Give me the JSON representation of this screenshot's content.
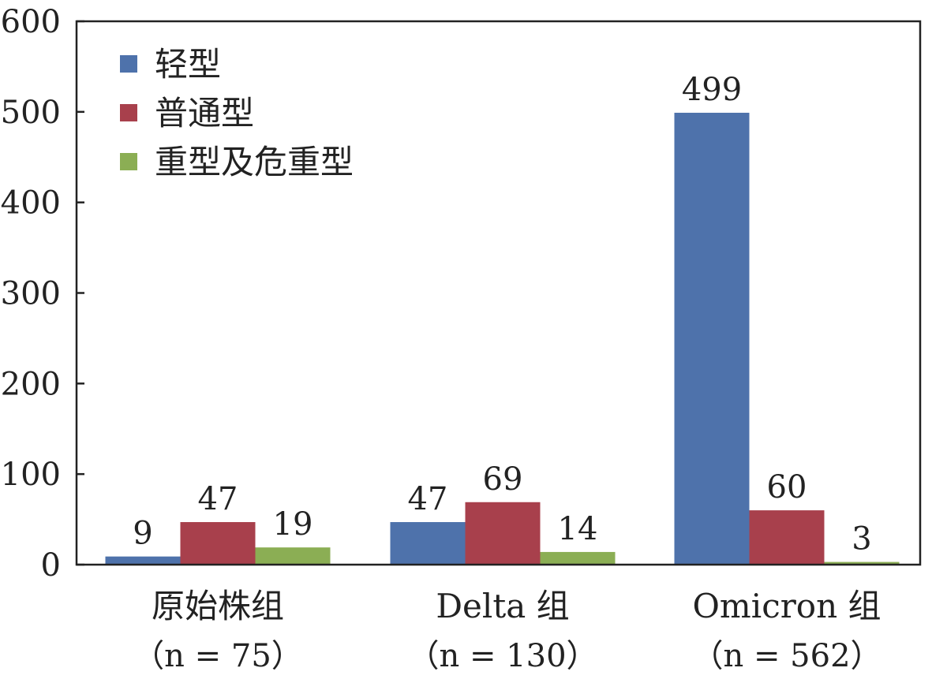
{
  "chart_data": {
    "type": "bar",
    "categories": [
      "原始株组",
      "Delta 组",
      "Omicron 组"
    ],
    "category_sublabels": [
      "（n = 75）",
      "（n = 130）",
      "（n = 562）"
    ],
    "series": [
      {
        "name": "轻型",
        "color": "#4e72ab",
        "values": [
          9,
          47,
          499
        ]
      },
      {
        "name": "普通型",
        "color": "#a8404c",
        "values": [
          47,
          69,
          60
        ]
      },
      {
        "name": "重型及危重型",
        "color": "#8bae54",
        "values": [
          19,
          14,
          3
        ]
      }
    ],
    "value_labels": [
      [
        "9",
        "47",
        "499"
      ],
      [
        "47",
        "69",
        "60"
      ],
      [
        "19",
        "14",
        "3"
      ]
    ],
    "ylim": [
      0,
      600
    ],
    "yticks": [
      "0",
      "100",
      "200",
      "300",
      "400",
      "500",
      "600"
    ],
    "legend_position": "top-left",
    "grid": false
  }
}
